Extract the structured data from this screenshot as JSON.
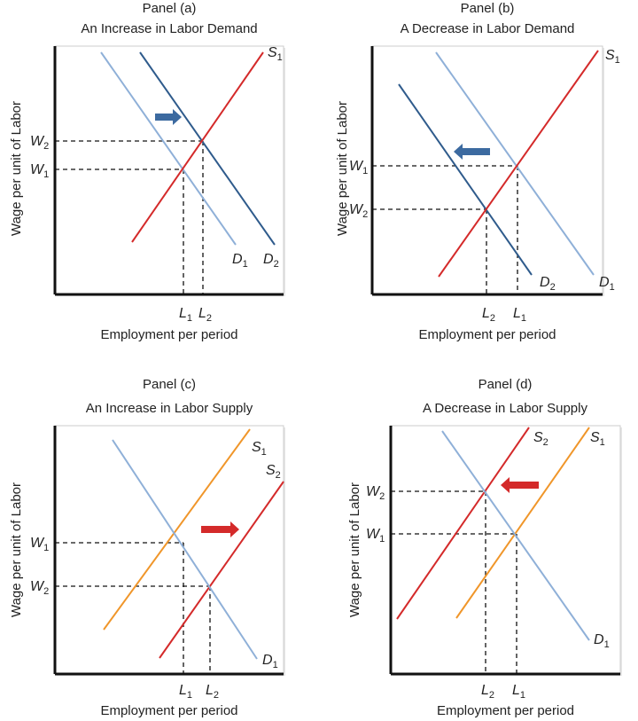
{
  "colors": {
    "demand_original": "#8fb0d8",
    "demand_shifted": "#2f5b8c",
    "supply_red": "#d42a2a",
    "supply_orange": "#f0962a",
    "arrow_blue": "#3c6aa0",
    "arrow_red": "#d42a2a"
  },
  "panels": [
    {
      "title": "Panel (a)",
      "subtitle": "An Increase in Labor Demand",
      "y_axis_label": "Wage per unit of Labor",
      "x_axis_label": "Employment per period",
      "curves": [
        {
          "main": "D",
          "sub": "1",
          "color": "#8fb0d8"
        },
        {
          "main": "D",
          "sub": "2",
          "color": "#2f5b8c"
        },
        {
          "main": "S",
          "sub": "1",
          "color": "#d42a2a"
        }
      ],
      "wage_labels": [
        {
          "main": "W",
          "sub": "2"
        },
        {
          "main": "W",
          "sub": "1"
        }
      ],
      "employment_labels": [
        {
          "main": "L",
          "sub": "1"
        },
        {
          "main": "L",
          "sub": "2"
        }
      ],
      "shift_arrow": {
        "direction": "right",
        "color": "#3c6aa0"
      }
    },
    {
      "title": "Panel (b)",
      "subtitle": "A Decrease in Labor Demand",
      "y_axis_label": "Wage per unit of Labor",
      "x_axis_label": "Employment per period",
      "curves": [
        {
          "main": "D",
          "sub": "2",
          "color": "#2f5b8c"
        },
        {
          "main": "D",
          "sub": "1",
          "color": "#8fb0d8"
        },
        {
          "main": "S",
          "sub": "1",
          "color": "#d42a2a"
        }
      ],
      "wage_labels": [
        {
          "main": "W",
          "sub": "1"
        },
        {
          "main": "W",
          "sub": "2"
        }
      ],
      "employment_labels": [
        {
          "main": "L",
          "sub": "2"
        },
        {
          "main": "L",
          "sub": "1"
        }
      ],
      "shift_arrow": {
        "direction": "left",
        "color": "#3c6aa0"
      }
    },
    {
      "title": "Panel (c)",
      "subtitle": "An Increase in Labor Supply",
      "y_axis_label": "Wage per unit of Labor",
      "x_axis_label": "Employment per period",
      "curves": [
        {
          "main": "S",
          "sub": "1",
          "color": "#f0962a"
        },
        {
          "main": "S",
          "sub": "2",
          "color": "#d42a2a"
        },
        {
          "main": "D",
          "sub": "1",
          "color": "#8fb0d8"
        }
      ],
      "wage_labels": [
        {
          "main": "W",
          "sub": "1"
        },
        {
          "main": "W",
          "sub": "2"
        }
      ],
      "employment_labels": [
        {
          "main": "L",
          "sub": "1"
        },
        {
          "main": "L",
          "sub": "2"
        }
      ],
      "shift_arrow": {
        "direction": "right",
        "color": "#d42a2a"
      }
    },
    {
      "title": "Panel (d)",
      "subtitle": "A Decrease in Labor Supply",
      "y_axis_label": "Wage per unit of Labor",
      "x_axis_label": "Employment per period",
      "curves": [
        {
          "main": "S",
          "sub": "2",
          "color": "#d42a2a"
        },
        {
          "main": "S",
          "sub": "1",
          "color": "#f0962a"
        },
        {
          "main": "D",
          "sub": "1",
          "color": "#8fb0d8"
        }
      ],
      "wage_labels": [
        {
          "main": "W",
          "sub": "2"
        },
        {
          "main": "W",
          "sub": "1"
        }
      ],
      "employment_labels": [
        {
          "main": "L",
          "sub": "2"
        },
        {
          "main": "L",
          "sub": "1"
        }
      ],
      "shift_arrow": {
        "direction": "left",
        "color": "#d42a2a"
      }
    }
  ]
}
